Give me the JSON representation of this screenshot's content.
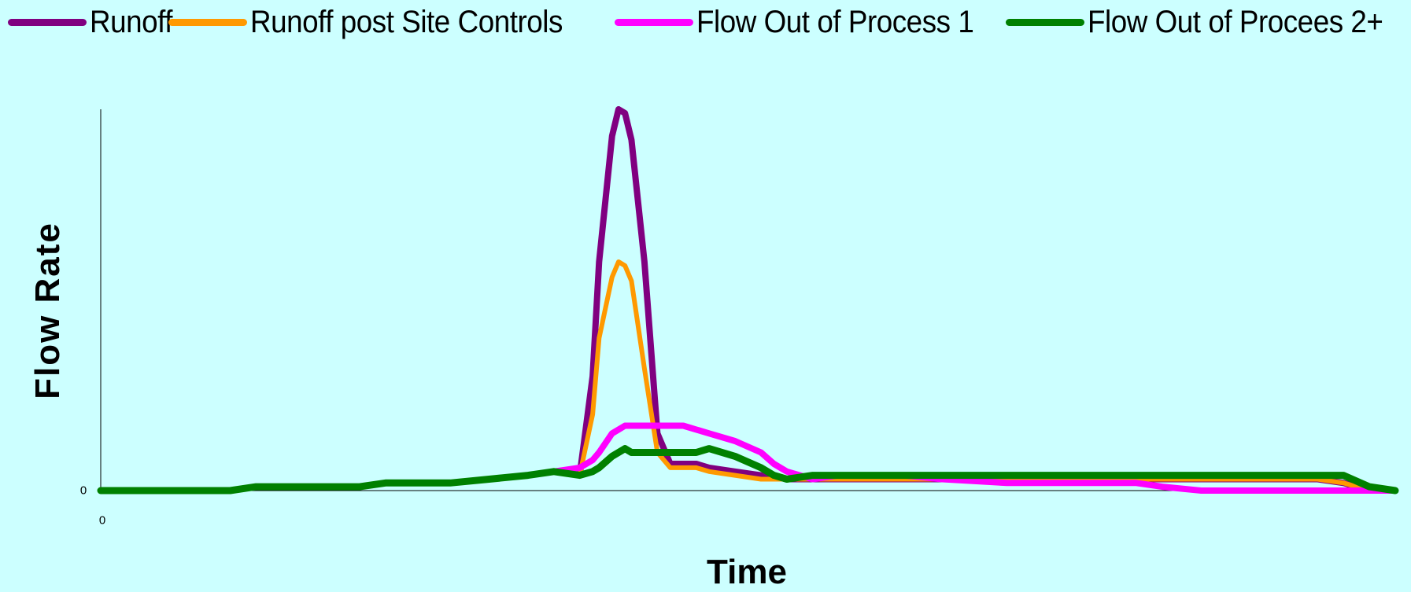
{
  "chart_data": {
    "type": "line",
    "title": "",
    "xlabel": "Time",
    "ylabel": "Flow Rate",
    "x_tick_labels": [
      "0"
    ],
    "y_tick_labels": [
      "0"
    ],
    "xlim": [
      0,
      100
    ],
    "ylim": [
      0,
      100
    ],
    "grid": false,
    "legend_position": "top",
    "x": [
      0,
      10,
      12,
      20,
      22,
      27,
      30,
      33,
      35,
      37,
      38,
      38.5,
      39.5,
      40,
      40.5,
      41,
      42,
      43,
      44,
      44.5,
      45,
      46,
      47,
      49,
      51,
      52,
      53,
      55,
      57,
      59,
      62,
      65,
      70,
      75,
      80,
      82,
      85,
      88,
      92,
      94,
      96,
      98,
      100
    ],
    "series": [
      {
        "name": "Runoff",
        "color": "#800080",
        "values": [
          0,
          0,
          1,
          1,
          2,
          2,
          3,
          4,
          5,
          4,
          30,
          60,
          93,
          100,
          99,
          92,
          60,
          15,
          7,
          7,
          7,
          7,
          6,
          5,
          4,
          4,
          3,
          3,
          3,
          3,
          3,
          3,
          3,
          3,
          3,
          3,
          3,
          3,
          3,
          3,
          2,
          0,
          0
        ]
      },
      {
        "name": "Runoff post Site Controls",
        "color": "#ff9900",
        "values": [
          0,
          0,
          1,
          1,
          2,
          2,
          3,
          4,
          5,
          4,
          20,
          40,
          56,
          60,
          59,
          55,
          32,
          10,
          6,
          6,
          6,
          6,
          5,
          4,
          3,
          3,
          3,
          3,
          3,
          3,
          3,
          3,
          3,
          3,
          3,
          3,
          3,
          3,
          3,
          3,
          2,
          0,
          0
        ]
      },
      {
        "name": "Flow Out of Process 1",
        "color": "#ff00ff",
        "values": [
          0,
          0,
          1,
          1,
          2,
          2,
          3,
          4,
          5,
          6,
          8,
          10,
          15,
          16,
          17,
          17,
          17,
          17,
          17,
          17,
          17,
          16,
          15,
          13,
          10,
          7,
          5,
          3,
          4,
          4,
          4,
          3,
          2,
          2,
          2,
          1,
          0,
          0,
          0,
          0,
          0,
          0,
          0
        ]
      },
      {
        "name": "Flow Out of Procees 2+",
        "color": "#008000",
        "values": [
          0,
          0,
          1,
          1,
          2,
          2,
          3,
          4,
          5,
          4,
          5,
          6,
          9,
          10,
          11,
          10,
          10,
          10,
          10,
          10,
          10,
          10,
          11,
          9,
          6,
          4,
          3,
          4,
          4,
          4,
          4,
          4,
          4,
          4,
          4,
          4,
          4,
          4,
          4,
          4,
          4,
          1,
          0
        ]
      }
    ]
  }
}
